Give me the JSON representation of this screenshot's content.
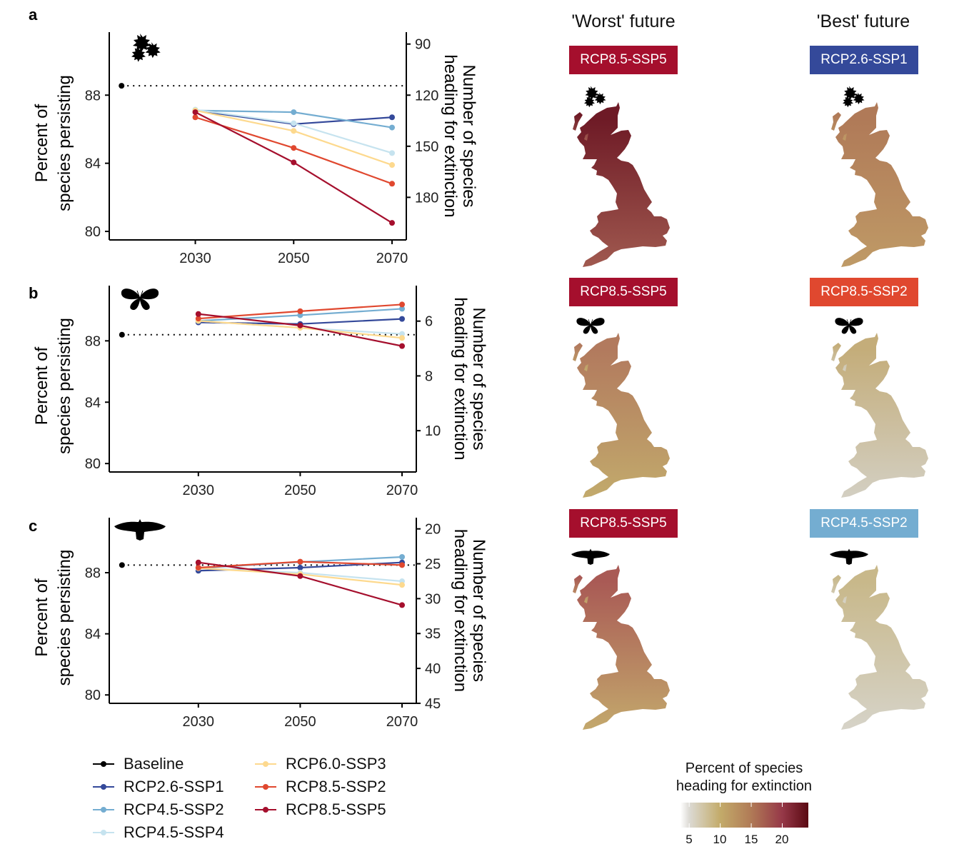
{
  "panel_labels": [
    "a",
    "b",
    "c"
  ],
  "column_titles": {
    "worst": "'Worst' future",
    "best": "'Best' future"
  },
  "series_colors": {
    "Baseline": "#000000",
    "RCP2.6-SSP1": "#34499a",
    "RCP4.5-SSP2": "#74add1",
    "RCP4.5-SSP4": "#c6e3ef",
    "RCP6.0-SSP3": "#fdd98e",
    "RCP8.5-SSP2": "#e0482f",
    "RCP8.5-SSP5": "#a50f2d"
  },
  "legend": [
    "Baseline",
    "RCP2.6-SSP1",
    "RCP4.5-SSP2",
    "RCP4.5-SSP4",
    "RCP6.0-SSP3",
    "RCP8.5-SSP2",
    "RCP8.5-SSP5"
  ],
  "chart_data": [
    {
      "type": "line",
      "panel": "a",
      "icon": "oak-leaf-icon",
      "ylabel": [
        "Percent of",
        "species persisting"
      ],
      "ylabel_right": [
        "Number of species",
        "heading for extinction"
      ],
      "x_ticks": [
        "2030",
        "2050",
        "2070"
      ],
      "y_ticks": [
        80,
        84,
        88
      ],
      "y_right_ticks": [
        90,
        120,
        150,
        180
      ],
      "xlim": [
        2012.5,
        2072.9
      ],
      "ylim": [
        79.5,
        91.7
      ],
      "baseline": {
        "x": 2015,
        "y": 88.55
      },
      "x": [
        2030,
        2050,
        2070
      ],
      "series": [
        {
          "name": "RCP2.6-SSP1",
          "values": [
            87.1,
            86.3,
            86.7
          ]
        },
        {
          "name": "RCP4.5-SSP2",
          "values": [
            87.1,
            87.0,
            86.1
          ]
        },
        {
          "name": "RCP4.5-SSP4",
          "values": [
            87.15,
            86.35,
            84.6
          ]
        },
        {
          "name": "RCP6.0-SSP3",
          "values": [
            87.1,
            85.9,
            83.9
          ]
        },
        {
          "name": "RCP8.5-SSP2",
          "values": [
            86.7,
            84.9,
            82.8
          ]
        },
        {
          "name": "RCP8.5-SSP5",
          "values": [
            87.0,
            84.05,
            80.5
          ]
        }
      ]
    },
    {
      "type": "line",
      "panel": "b",
      "icon": "butterfly-icon",
      "ylabel": [
        "Percent of",
        "species persisting"
      ],
      "ylabel_right": [
        "Number of species",
        "heading for extinction"
      ],
      "x_ticks": [
        "2030",
        "2050",
        "2070"
      ],
      "y_ticks": [
        80,
        84,
        88
      ],
      "y_right_ticks": [
        6,
        8,
        10
      ],
      "xlim": [
        2012.5,
        2072.8
      ],
      "ylim": [
        79.45,
        91.6
      ],
      "baseline": {
        "x": 2015,
        "y": 88.4
      },
      "x": [
        2030,
        2050,
        2070
      ],
      "series": [
        {
          "name": "RCP2.6-SSP1",
          "values": [
            89.2,
            89.1,
            89.43
          ]
        },
        {
          "name": "RCP4.5-SSP2",
          "values": [
            89.3,
            89.67,
            90.09
          ]
        },
        {
          "name": "RCP4.5-SSP4",
          "values": [
            89.3,
            88.85,
            88.45
          ]
        },
        {
          "name": "RCP6.0-SSP3",
          "values": [
            89.3,
            88.85,
            88.19
          ]
        },
        {
          "name": "RCP8.5-SSP2",
          "values": [
            89.45,
            89.93,
            90.37
          ]
        },
        {
          "name": "RCP8.5-SSP5",
          "values": [
            89.75,
            89.0,
            87.66
          ]
        }
      ]
    },
    {
      "type": "line",
      "panel": "c",
      "icon": "bird-icon",
      "ylabel": [
        "Percent of",
        "species persisting"
      ],
      "ylabel_right": [
        "Number of species",
        "heading for extinction"
      ],
      "x_ticks": [
        "2030",
        "2050",
        "2070"
      ],
      "y_ticks": [
        80,
        84,
        88
      ],
      "y_right_ticks": [
        20,
        25,
        30,
        35,
        40,
        45
      ],
      "xlim": [
        2012.5,
        2072.8
      ],
      "ylim": [
        79.45,
        91.6
      ],
      "baseline": {
        "x": 2015,
        "y": 88.5
      },
      "x": [
        2030,
        2050,
        2070
      ],
      "series": [
        {
          "name": "RCP2.6-SSP1",
          "values": [
            88.13,
            88.33,
            88.67
          ]
        },
        {
          "name": "RCP4.5-SSP2",
          "values": [
            88.3,
            88.7,
            89.03
          ]
        },
        {
          "name": "RCP4.5-SSP4",
          "values": [
            88.3,
            88.0,
            87.44
          ]
        },
        {
          "name": "RCP6.0-SSP3",
          "values": [
            88.3,
            87.9,
            87.2
          ]
        },
        {
          "name": "RCP8.5-SSP2",
          "values": [
            88.33,
            88.72,
            88.5
          ]
        },
        {
          "name": "RCP8.5-SSP5",
          "values": [
            88.67,
            87.78,
            85.88
          ]
        }
      ]
    }
  ],
  "maps": [
    {
      "panel": "a",
      "worst": {
        "scenario": "RCP8.5-SSP5",
        "color": "#a50f2d",
        "north": "#6e1a26",
        "south": "#a0594f"
      },
      "best": {
        "scenario": "RCP2.6-SSP1",
        "color": "#34499a",
        "north": "#b07a58",
        "south": "#bf9a66"
      }
    },
    {
      "panel": "b",
      "worst": {
        "scenario": "RCP8.5-SSP5",
        "color": "#a50f2d",
        "north": "#b27a5e",
        "south": "#c2aa6c"
      },
      "best": {
        "scenario": "RCP8.5-SSP2",
        "color": "#e0482f",
        "north": "#c4ad7a",
        "south": "#d3cfc2"
      }
    },
    {
      "panel": "c",
      "worst": {
        "scenario": "RCP8.5-SSP5",
        "color": "#a50f2d",
        "north": "#a95a55",
        "south": "#c3a86c"
      },
      "best": {
        "scenario": "RCP4.5-SSP2",
        "color": "#74add1",
        "north": "#c8b88a",
        "south": "#d6d3c8"
      }
    }
  ],
  "colorbar": {
    "title": [
      "Percent of species",
      "heading for extinction"
    ],
    "ticks": [
      "5",
      "10",
      "15",
      "20"
    ],
    "range": [
      3.6,
      24.2
    ],
    "stops": [
      [
        3.6,
        "#ffffff"
      ],
      [
        5,
        "#dcdad4"
      ],
      [
        10,
        "#c3ab6a"
      ],
      [
        15,
        "#b07a56"
      ],
      [
        20,
        "#963848"
      ],
      [
        24.2,
        "#5a0912"
      ]
    ]
  }
}
